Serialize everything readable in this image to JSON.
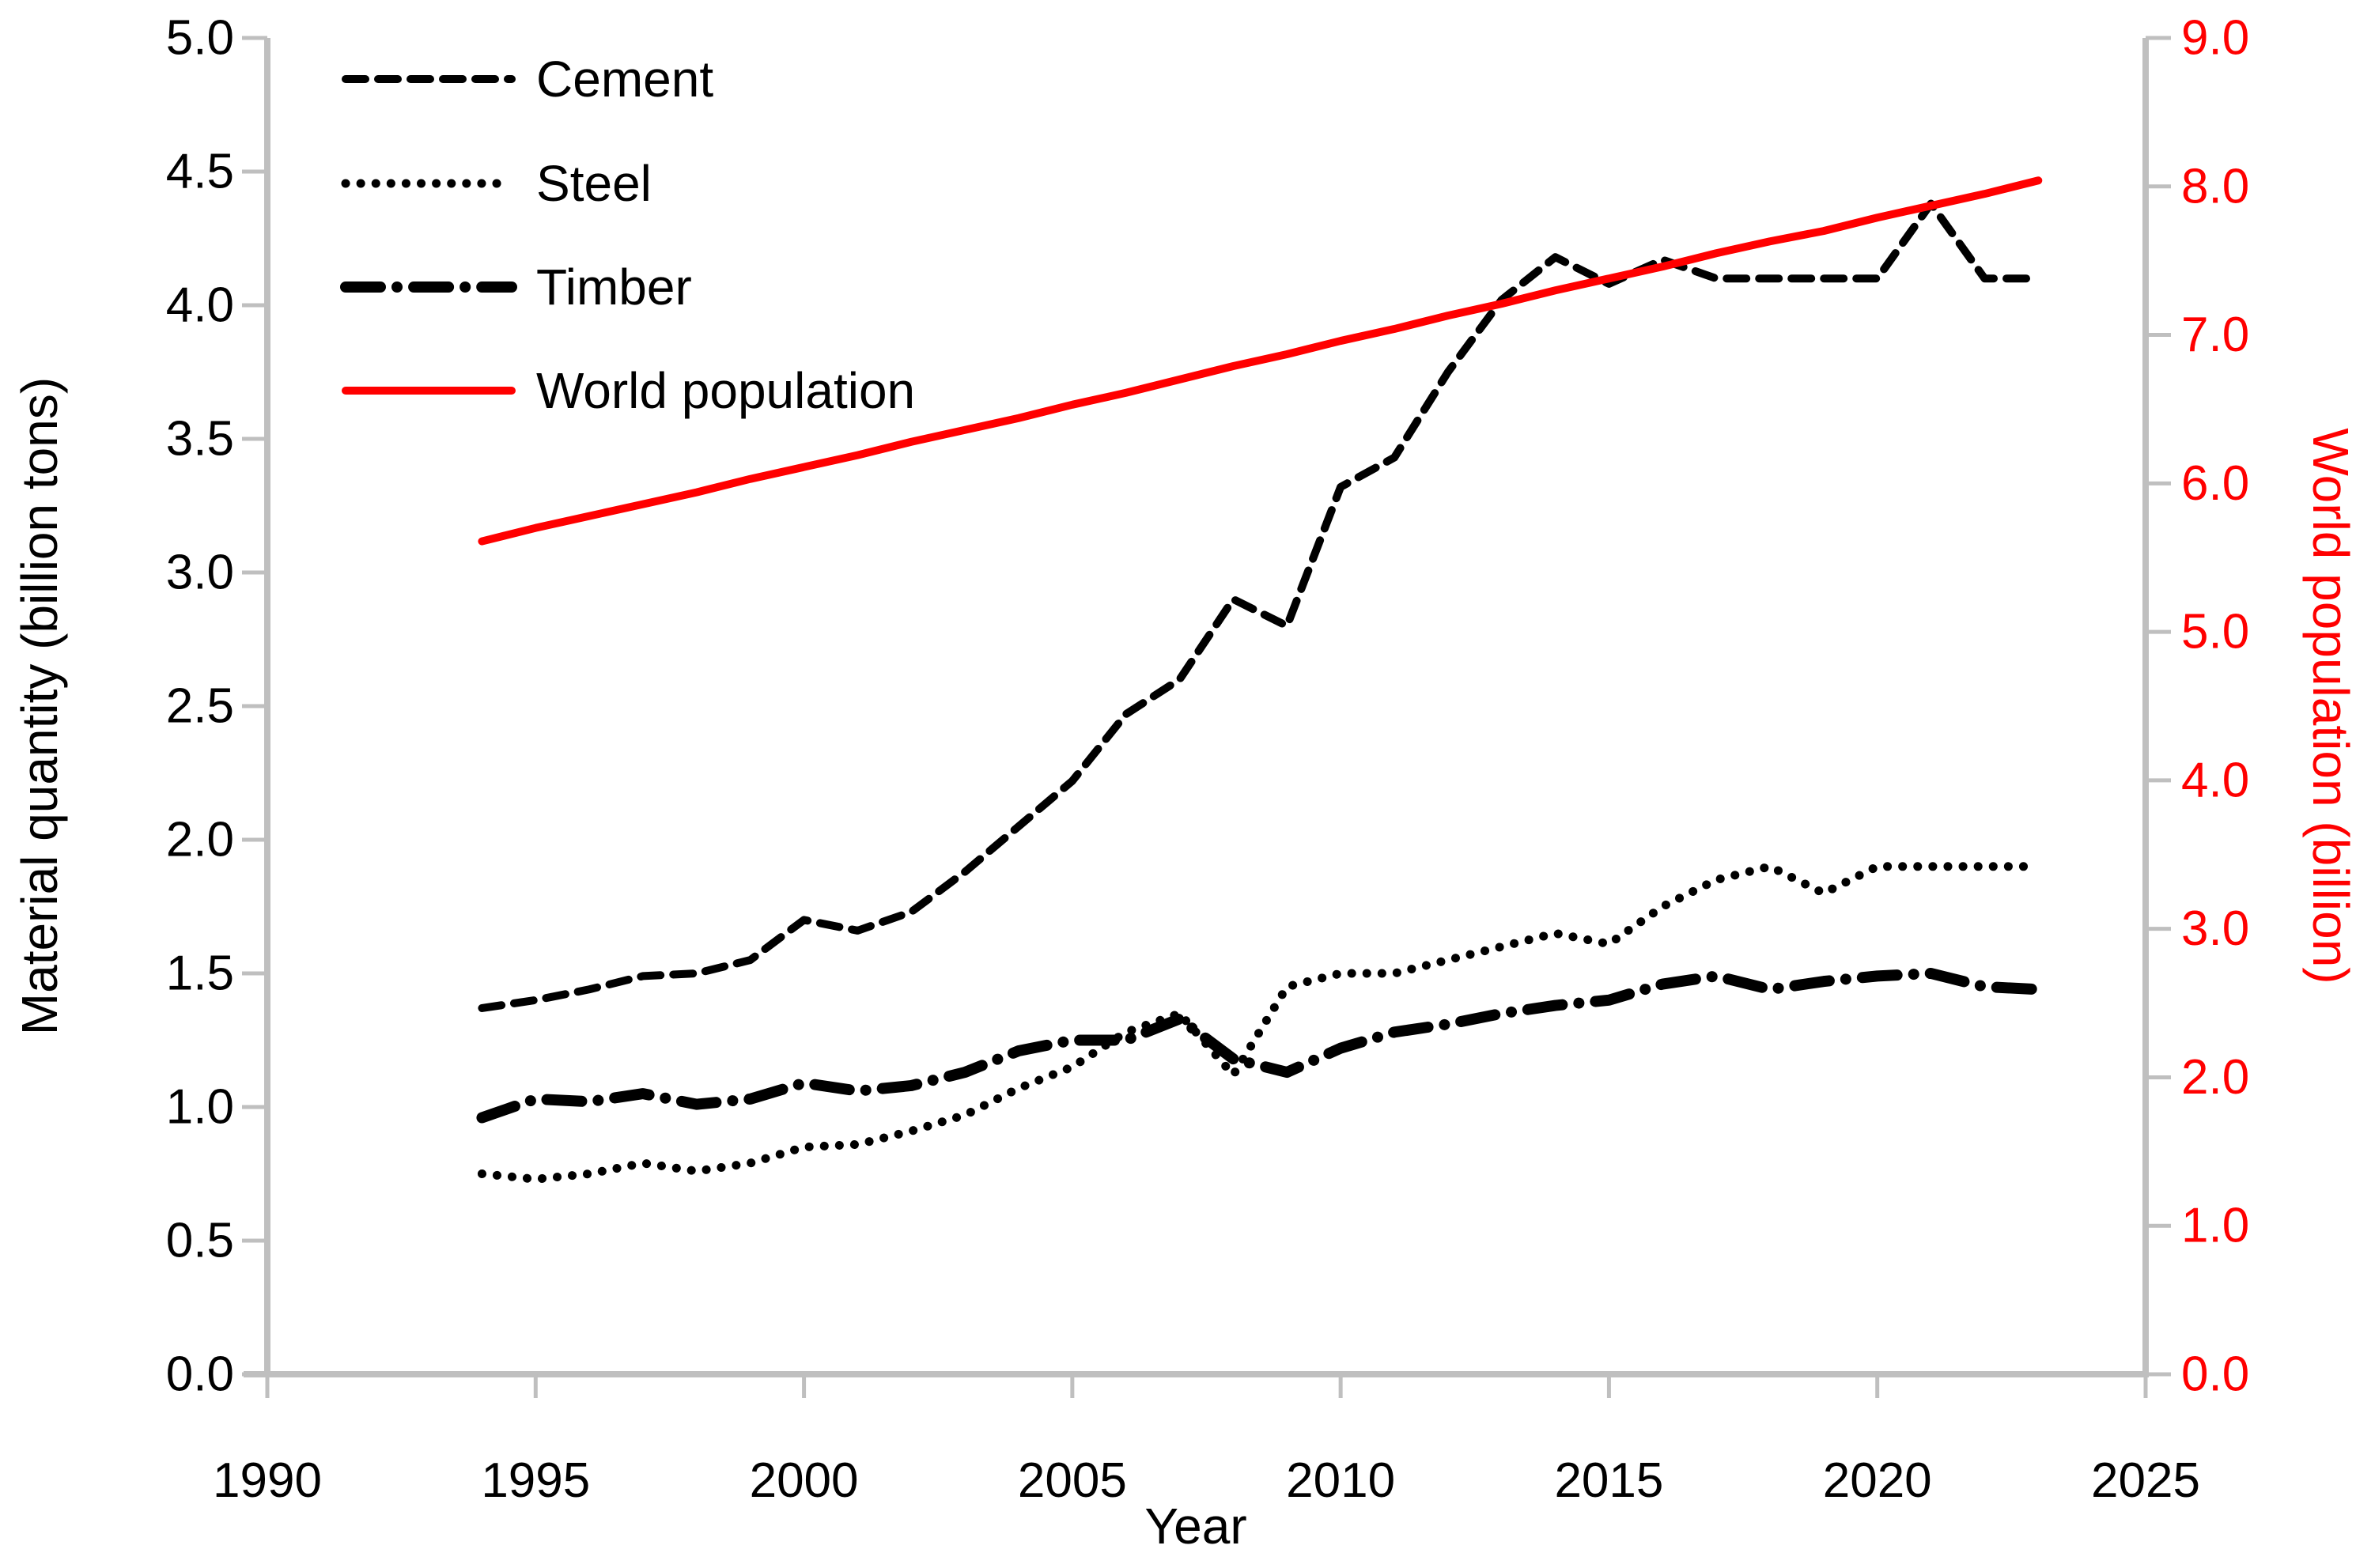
{
  "chart_data": {
    "type": "line",
    "title": "",
    "xlabel": "Year",
    "ylabel_left": "Material quantity (billion tons)",
    "ylabel_right": "World population (billion)",
    "x": [
      1994,
      1995,
      1996,
      1997,
      1998,
      1999,
      2000,
      2001,
      2002,
      2003,
      2004,
      2005,
      2006,
      2007,
      2008,
      2009,
      2010,
      2011,
      2012,
      2013,
      2014,
      2015,
      2016,
      2017,
      2018,
      2019,
      2020,
      2021,
      2022,
      2023
    ],
    "series": [
      {
        "name": "Cement",
        "axis": "left",
        "color": "#000000",
        "dash": "25 16",
        "width": 10,
        "values": [
          1.37,
          1.4,
          1.44,
          1.49,
          1.5,
          1.55,
          1.7,
          1.66,
          1.73,
          1.88,
          2.05,
          2.22,
          2.47,
          2.6,
          2.9,
          2.8,
          3.32,
          3.43,
          3.75,
          4.02,
          4.18,
          4.08,
          4.17,
          4.1,
          4.1,
          4.1,
          4.1,
          4.38,
          4.1,
          4.1
        ]
      },
      {
        "name": "Steel",
        "axis": "left",
        "color": "#000000",
        "dash": "0.1 19",
        "width": 11,
        "values": [
          0.75,
          0.73,
          0.75,
          0.79,
          0.76,
          0.79,
          0.85,
          0.86,
          0.91,
          0.97,
          1.07,
          1.15,
          1.28,
          1.35,
          1.12,
          1.45,
          1.5,
          1.5,
          1.55,
          1.6,
          1.65,
          1.61,
          1.75,
          1.85,
          1.9,
          1.8,
          1.9,
          1.9,
          1.9,
          1.9
        ]
      },
      {
        "name": "Timber",
        "axis": "left",
        "color": "#000000",
        "dash": "44 21 0.1 21",
        "width": 14,
        "values": [
          0.96,
          1.03,
          1.02,
          1.05,
          1.01,
          1.03,
          1.09,
          1.06,
          1.08,
          1.13,
          1.21,
          1.25,
          1.25,
          1.33,
          1.18,
          1.13,
          1.22,
          1.28,
          1.31,
          1.35,
          1.38,
          1.4,
          1.46,
          1.49,
          1.44,
          1.47,
          1.49,
          1.5,
          1.45,
          1.44
        ]
      },
      {
        "name": "World population",
        "axis": "right",
        "color": "#FF0000",
        "dash": "",
        "width": 10,
        "values": [
          5.61,
          5.7,
          5.78,
          5.86,
          5.94,
          6.03,
          6.11,
          6.19,
          6.28,
          6.36,
          6.44,
          6.53,
          6.61,
          6.7,
          6.79,
          6.87,
          6.96,
          7.04,
          7.13,
          7.21,
          7.3,
          7.38,
          7.46,
          7.55,
          7.63,
          7.7,
          7.79,
          7.87,
          7.95,
          8.04
        ]
      }
    ],
    "axes": {
      "x_ticks": [
        "1990",
        "1995",
        "2000",
        "2005",
        "2010",
        "2015",
        "2020",
        "2025"
      ],
      "left_ticks": [
        "0.0",
        "0.5",
        "1.0",
        "1.5",
        "2.0",
        "2.5",
        "3.0",
        "3.5",
        "4.0",
        "4.5",
        "5.0"
      ],
      "right_ticks": [
        "0.0",
        "1.0",
        "2.0",
        "3.0",
        "4.0",
        "5.0",
        "6.0",
        "7.0",
        "8.0",
        "9.0"
      ],
      "x_range": [
        1990,
        2025
      ],
      "left_range": [
        0,
        5
      ],
      "right_range": [
        0,
        9
      ],
      "grid": "off",
      "legend_position": "top-left-inside"
    },
    "colors": {
      "axis": "#BFBFBF",
      "text": "#000000",
      "right_axis_text": "#FF0000",
      "background": "#FFFFFF"
    }
  }
}
